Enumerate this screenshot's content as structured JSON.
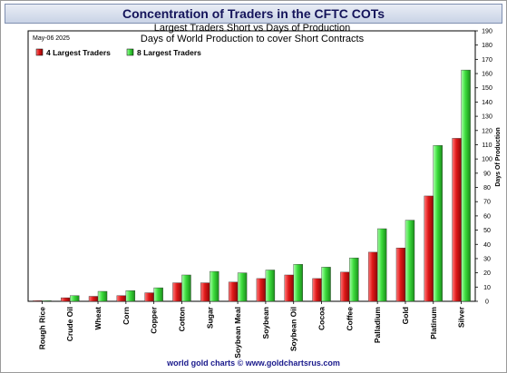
{
  "header": {
    "title": "Concentration of Traders in the CFTC COTs"
  },
  "footer": "world gold charts © www.goldchartsrus.com",
  "chart_data": {
    "type": "bar",
    "title": "Largest Traders Short vs Days of Production",
    "subtitle": "Days of World Production to cover Short Contracts",
    "date_label": "May-06  2025",
    "ylabel": "Days Of Production",
    "xlabel": "",
    "ylim": [
      0,
      190
    ],
    "ytick_step": 10,
    "yaxis_side": "right",
    "grid": false,
    "legend_placement": "top-left",
    "categories": [
      "Rough Rice",
      "Crude Oil",
      "Wheat",
      "Corn",
      "Copper",
      "Cotton",
      "Sugar",
      "Soybean Meal",
      "Soybean",
      "Soybean Oil",
      "Cocoa",
      "Coffee",
      "Palladium",
      "Gold",
      "Platinum",
      "Silver"
    ],
    "series": [
      {
        "name": "4 Largest Traders",
        "color": "#e02020",
        "values": [
          0.5,
          2.5,
          3.5,
          4,
          6,
          13,
          13,
          13.5,
          16,
          18.5,
          16,
          20.5,
          34.5,
          37.5,
          74,
          114.5
        ]
      },
      {
        "name": "8 Largest Traders",
        "color": "#3ccf3c",
        "values": [
          0.5,
          4,
          7,
          7.5,
          9.5,
          18.5,
          21,
          20,
          22,
          26,
          24,
          30.5,
          51,
          57,
          109.5,
          162.5
        ]
      }
    ]
  }
}
